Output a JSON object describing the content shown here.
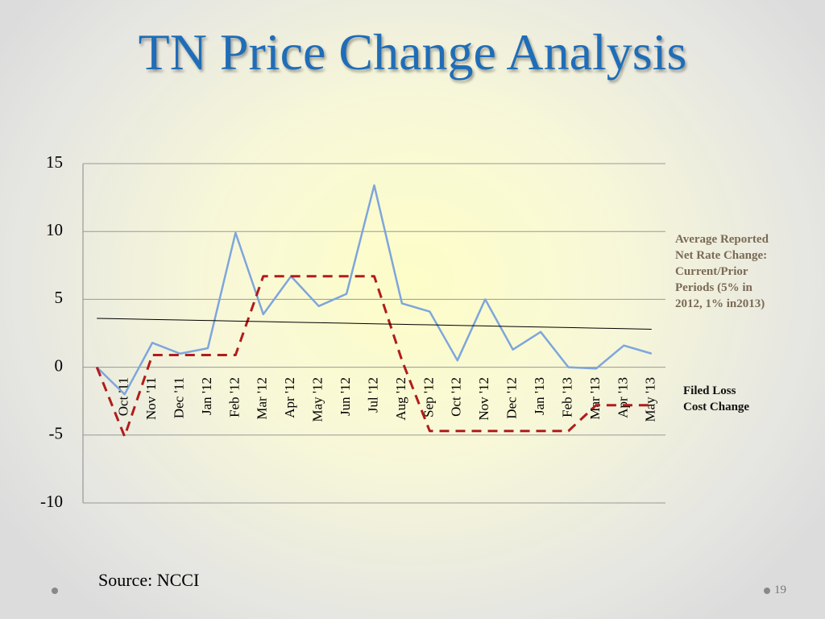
{
  "title": "TN Price Change Analysis",
  "source": "Source:   NCCI",
  "page_number": "19",
  "chart_data": {
    "type": "line",
    "categories": [
      null,
      "Oct '11",
      "Nov '11",
      "Dec '11",
      "Jan '12",
      "Feb '12",
      "Mar '12",
      "Apr '12",
      "May '12",
      "Jun '12",
      "Jul '12",
      "Aug '12",
      "Sep '12",
      "Oct '12",
      "Nov '12",
      "Dec '12",
      "Jan '13",
      "Feb '13",
      "Mar '13",
      "Apr '13",
      "May '13"
    ],
    "series": [
      {
        "name": "Average Reported Net Rate Change: Current/Prior Periods (5% in 2012, 1% in2013)",
        "color": "#7ea6dc",
        "dash": false,
        "width": 2.5,
        "values": [
          0,
          -2,
          1.8,
          1.0,
          1.4,
          9.9,
          3.9,
          6.7,
          4.5,
          5.4,
          13.4,
          4.7,
          4.1,
          0.5,
          5.0,
          1.3,
          2.6,
          0.0,
          -0.1,
          1.6,
          1.0
        ]
      },
      {
        "name": "Filed Loss Cost Change",
        "color": "#b01c1c",
        "dash": true,
        "width": 3,
        "values": [
          0,
          -5.1,
          0.9,
          0.9,
          0.9,
          0.9,
          6.7,
          6.7,
          6.7,
          6.7,
          6.7,
          0.5,
          -4.7,
          -4.7,
          -4.7,
          -4.7,
          -4.7,
          -4.7,
          -2.8,
          -2.8,
          -2.8
        ]
      },
      {
        "color": "#000000",
        "dash": false,
        "width": 1,
        "values": [
          3.6,
          3.56,
          3.52,
          3.48,
          3.44,
          3.4,
          3.36,
          3.32,
          3.28,
          3.24,
          3.2,
          3.16,
          3.12,
          3.08,
          3.04,
          3.0,
          2.96,
          2.92,
          2.88,
          2.84,
          2.8
        ]
      }
    ],
    "ylim": [
      -10,
      15
    ],
    "yticks": [
      15,
      10,
      5,
      0,
      -5,
      -10
    ],
    "grid": true
  }
}
